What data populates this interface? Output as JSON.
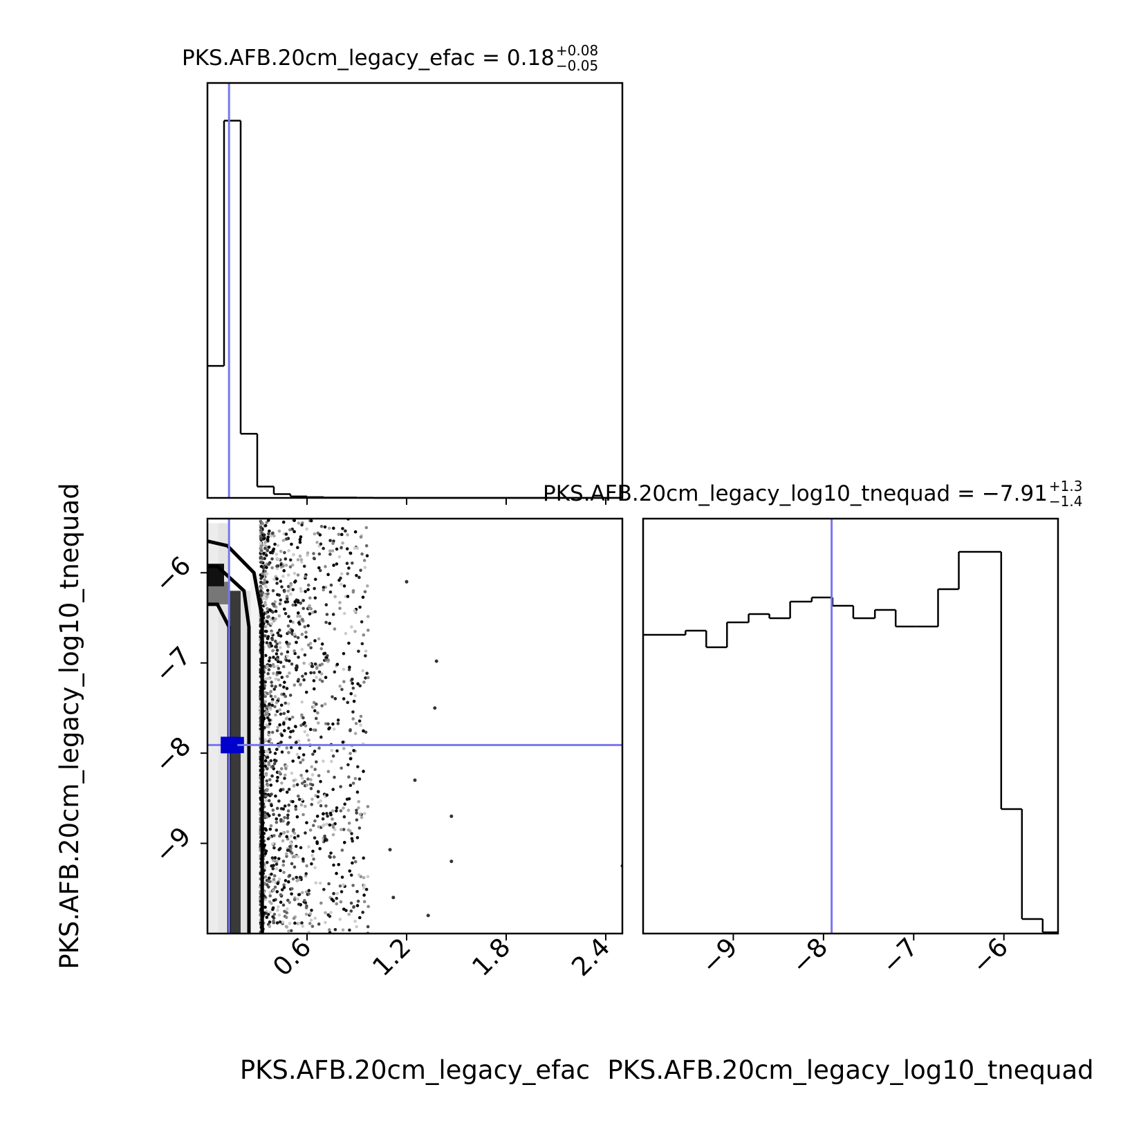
{
  "chart_data": [
    {
      "type": "histogram",
      "panel": "efac-marginal",
      "title": {
        "param": "PKS.AFB.20cm_legacy_efac",
        "median": "0.18",
        "plus": "+0.08",
        "minus": "−0.05"
      },
      "bin_edges": [
        0.0,
        0.1,
        0.2,
        0.3,
        0.4,
        0.5,
        0.6,
        0.7,
        0.8,
        0.9,
        1.0,
        2.5
      ],
      "counts": [
        0.35,
        1.0,
        0.17,
        0.03,
        0.01,
        0.004,
        0.002,
        0.001,
        0.001,
        0.0005,
        0.0
      ],
      "truth": 0.13,
      "xlim": [
        0.0,
        2.5
      ],
      "ylim": [
        0,
        1.1
      ],
      "truth_color": "#7777ee"
    },
    {
      "type": "scatter",
      "panel": "joint-efac-tnequad",
      "xlabel": "PKS.AFB.20cm_legacy_efac",
      "ylabel": "PKS.AFB.20cm_legacy_log10_tnequad",
      "x_ticks": [
        "0.6",
        "1.2",
        "1.8",
        "2.4"
      ],
      "x_tick_values": [
        0.6,
        1.2,
        1.8,
        2.4
      ],
      "y_ticks": [
        "−6",
        "−7",
        "−8",
        "−9"
      ],
      "y_tick_values": [
        -6,
        -7,
        -8,
        -9
      ],
      "xlim": [
        0.0,
        2.5
      ],
      "ylim": [
        -10.0,
        -5.4
      ],
      "truth": {
        "x": 0.13,
        "y": -7.91
      },
      "contour_inner_x": [
        0.13,
        0.25
      ],
      "contour_outer_x": [
        0.0,
        0.33
      ]
    },
    {
      "type": "histogram",
      "panel": "tnequad-marginal",
      "title": {
        "param": "PKS.AFB.20cm_legacy_log10_tnequad",
        "median": "−7.91",
        "plus": "+1.3",
        "minus": "−1.4"
      },
      "bin_edges": [
        -10.0,
        -9.77,
        -9.53,
        -9.3,
        -9.07,
        -8.83,
        -8.6,
        -8.37,
        -8.13,
        -7.9,
        -7.67,
        -7.43,
        -7.2,
        -6.97,
        -6.73,
        -6.5,
        -6.27,
        -6.03,
        -5.8,
        -5.57,
        -5.4
      ],
      "counts": [
        0.72,
        0.72,
        0.73,
        0.69,
        0.75,
        0.77,
        0.76,
        0.8,
        0.81,
        0.79,
        0.76,
        0.78,
        0.74,
        0.74,
        0.83,
        0.92,
        0.92,
        0.3,
        0.035,
        0.003
      ],
      "truth": -7.91,
      "xlim": [
        -10.0,
        -5.4
      ],
      "x_ticks": [
        "−9",
        "−8",
        "−7",
        "−6"
      ],
      "x_tick_values": [
        -9,
        -8,
        -7,
        -6
      ],
      "xlabel": "PKS.AFB.20cm_legacy_log10_tnequad",
      "truth_color": "#7777ee"
    }
  ]
}
